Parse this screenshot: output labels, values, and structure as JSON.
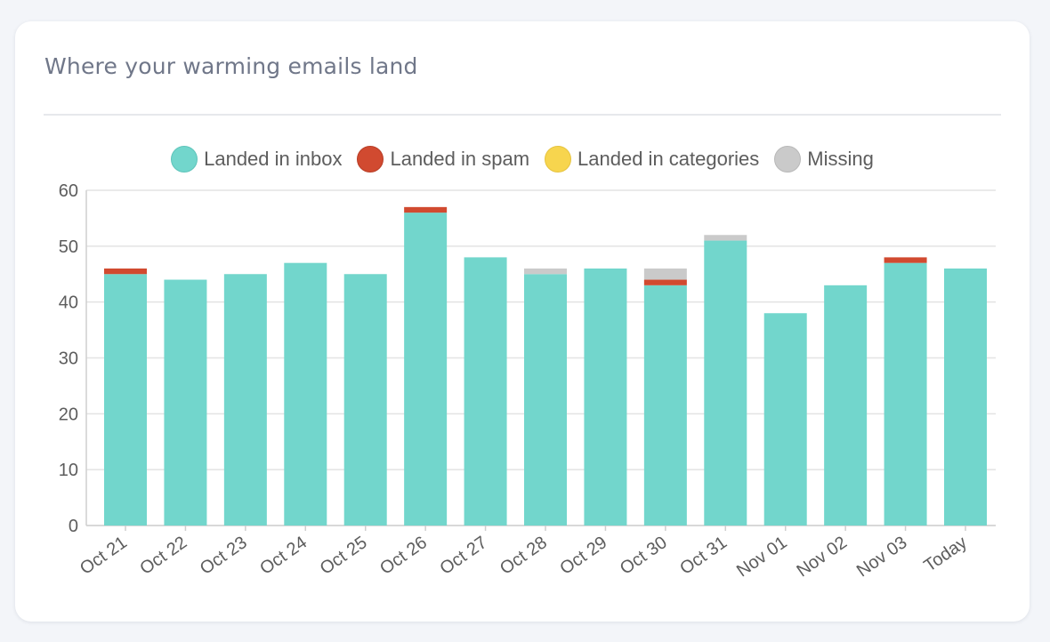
{
  "card": {
    "title": "Where your warming emails land"
  },
  "legend": [
    {
      "label": "Landed in inbox",
      "color": "#72d6cc",
      "border": "#5ec4ba"
    },
    {
      "label": "Landed in spam",
      "color": "#d14a30",
      "border": "#b83d26"
    },
    {
      "label": "Landed in categories",
      "color": "#f7d54e",
      "border": "#e6c33f"
    },
    {
      "label": "Missing",
      "color": "#cacaca",
      "border": "#b8b8b8"
    }
  ],
  "chart_data": {
    "type": "bar",
    "stacked": true,
    "categories": [
      "Oct 21",
      "Oct 22",
      "Oct 23",
      "Oct 24",
      "Oct 25",
      "Oct 26",
      "Oct 27",
      "Oct 28",
      "Oct 29",
      "Oct 30",
      "Oct 31",
      "Nov 01",
      "Nov 02",
      "Nov 03",
      "Today"
    ],
    "series": [
      {
        "name": "Landed in inbox",
        "color": "#72d6cc",
        "values": [
          45,
          44,
          45,
          47,
          45,
          56,
          48,
          45,
          46,
          43,
          51,
          38,
          43,
          47,
          46
        ]
      },
      {
        "name": "Landed in spam",
        "color": "#d14a30",
        "values": [
          1,
          0,
          0,
          0,
          0,
          1,
          0,
          0,
          0,
          1,
          0,
          0,
          0,
          1,
          0
        ]
      },
      {
        "name": "Landed in categories",
        "color": "#f7d54e",
        "values": [
          0,
          0,
          0,
          0,
          0,
          0,
          0,
          0,
          0,
          0,
          0,
          0,
          0,
          0,
          0
        ]
      },
      {
        "name": "Missing",
        "color": "#cacaca",
        "values": [
          0,
          0,
          0,
          0,
          0,
          0,
          0,
          1,
          0,
          2,
          1,
          0,
          0,
          0,
          0
        ]
      }
    ],
    "yticks": [
      "0",
      "10",
      "20",
      "30",
      "40",
      "50",
      "60"
    ],
    "ylim": [
      0,
      60
    ],
    "grid": true,
    "legend_position": "top-center"
  }
}
